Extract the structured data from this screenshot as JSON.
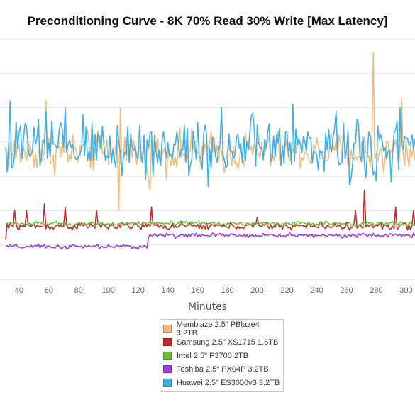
{
  "chart_data": {
    "type": "line",
    "title": "Preconditioning Curve - 8K 70% Read 30% Write [Max Latency]",
    "xlabel": "Minutes",
    "ylabel": "",
    "x_ticks": [
      40,
      60,
      80,
      100,
      120,
      140,
      160,
      180,
      200,
      220,
      240,
      260,
      280,
      300
    ],
    "xlim": [
      31,
      306
    ],
    "ylim": [
      0,
      7
    ],
    "grid": true,
    "legend_position": "bottom-center",
    "series": [
      {
        "name": "Memblaze 2.5\" PBlaze4 3.2TB",
        "color": "#f0bd7b",
        "base": 3.7,
        "amp": 0.45,
        "spikes": [
          [
            58,
            5.2
          ],
          [
            108,
            5.0
          ],
          [
            278,
            6.6
          ],
          [
            297,
            5.3
          ]
        ],
        "dips": [
          [
            107,
            2.0
          ],
          [
            128,
            2.6
          ]
        ]
      },
      {
        "name": "Samsung 2.5\" XS1715 1.6TB",
        "color": "#c22a2a",
        "base": 1.55,
        "amp": 0.08,
        "spikes": [
          [
            37,
            2.0
          ],
          [
            45,
            2.0
          ],
          [
            57,
            2.2
          ],
          [
            71,
            2.1
          ],
          [
            92,
            2.0
          ],
          [
            129,
            2.1
          ],
          [
            200,
            1.8
          ],
          [
            266,
            2.0
          ],
          [
            272,
            2.6
          ],
          [
            293,
            2.1
          ],
          [
            305,
            2.0
          ]
        ],
        "dips": [
          [
            31,
            1.15
          ]
        ]
      },
      {
        "name": "Intel 2.5\" P3700 2TB",
        "color": "#6cbe3a",
        "base": 1.62,
        "amp": 0.05,
        "spikes": [],
        "dips": []
      },
      {
        "name": "Toshiba 2.5\" PX04P 3.2TB",
        "color": "#9b3ee3",
        "base": 0.95,
        "amp": 0.05,
        "step_x": 127,
        "step_base": 1.28,
        "spikes": [],
        "dips": []
      },
      {
        "name": "Huawei 2.5\" ES3000v3 3.2TB",
        "color": "#3fb0e6",
        "base": 3.85,
        "amp": 0.7,
        "spikes": [
          [
            34,
            5.2
          ],
          [
            58,
            4.9
          ],
          [
            176,
            5.0
          ],
          [
            253,
            4.9
          ],
          [
            296,
            5.0
          ]
        ],
        "dips": []
      }
    ]
  }
}
